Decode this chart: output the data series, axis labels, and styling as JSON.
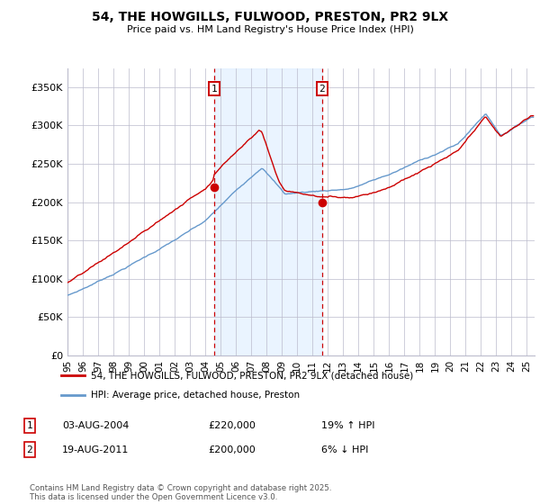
{
  "title": "54, THE HOWGILLS, FULWOOD, PRESTON, PR2 9LX",
  "subtitle": "Price paid vs. HM Land Registry's House Price Index (HPI)",
  "ylabel_ticks": [
    "£0",
    "£50K",
    "£100K",
    "£150K",
    "£200K",
    "£250K",
    "£300K",
    "£350K"
  ],
  "ytick_vals": [
    0,
    50000,
    100000,
    150000,
    200000,
    250000,
    300000,
    350000
  ],
  "ylim": [
    0,
    375000
  ],
  "xlim_start": 1995.0,
  "xlim_end": 2025.5,
  "sale1_x": 2004.58,
  "sale1_y": 220000,
  "sale2_x": 2011.62,
  "sale2_y": 200000,
  "red_color": "#cc0000",
  "blue_color": "#6699cc",
  "shade_color": "#ddeeff",
  "grid_color": "#bbbbcc",
  "legend_label_red": "54, THE HOWGILLS, FULWOOD, PRESTON, PR2 9LX (detached house)",
  "legend_label_blue": "HPI: Average price, detached house, Preston",
  "sale1_date": "03-AUG-2004",
  "sale1_price": "£220,000",
  "sale1_hpi": "19% ↑ HPI",
  "sale2_date": "19-AUG-2011",
  "sale2_price": "£200,000",
  "sale2_hpi": "6% ↓ HPI",
  "footer": "Contains HM Land Registry data © Crown copyright and database right 2025.\nThis data is licensed under the Open Government Licence v3.0.",
  "xtick_years": [
    1995,
    1996,
    1997,
    1998,
    1999,
    2000,
    2001,
    2002,
    2003,
    2004,
    2005,
    2006,
    2007,
    2008,
    2009,
    2010,
    2011,
    2012,
    2013,
    2014,
    2015,
    2016,
    2017,
    2018,
    2019,
    2020,
    2021,
    2022,
    2023,
    2024,
    2025
  ]
}
